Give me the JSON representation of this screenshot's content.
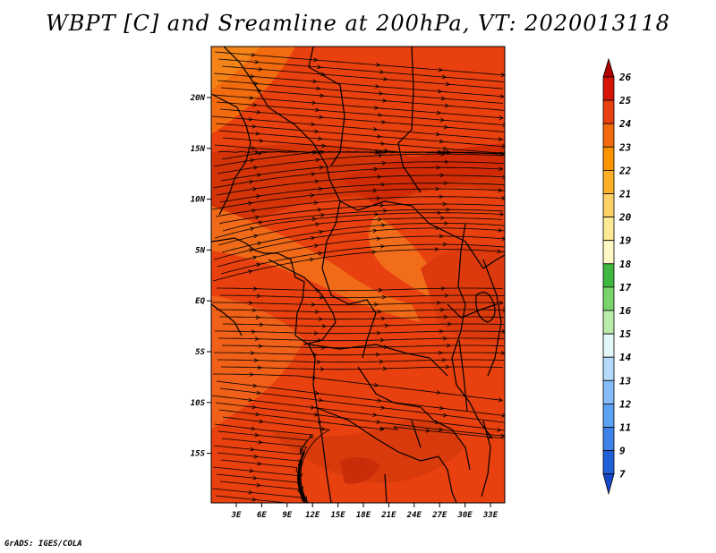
{
  "title": "WBPT [C] and Sreamline at 200hPa, VT: 2020013118",
  "footer": "GrADS: IGES/COLA",
  "map": {
    "lat_labels": [
      "20N",
      "15N",
      "10N",
      "5N",
      "EQ",
      "5S",
      "10S",
      "15S"
    ],
    "lon_labels": [
      "3E",
      "6E",
      "9E",
      "12E",
      "15E",
      "18E",
      "21E",
      "24E",
      "27E",
      "30E",
      "33E"
    ],
    "field": "wet-bulb potential temperature",
    "dominant_color": "#e8400f"
  },
  "colorbar": {
    "levels": [
      "26",
      "25",
      "24",
      "23",
      "22",
      "21",
      "20",
      "19",
      "18",
      "17",
      "16",
      "15",
      "14",
      "13",
      "12",
      "11",
      "9",
      "7"
    ],
    "colors": [
      "#b20000",
      "#d51407",
      "#e8400f",
      "#f36b0f",
      "#fa9300",
      "#fcb028",
      "#fdd168",
      "#fde996",
      "#fff7c4",
      "#3fb740",
      "#79d56b",
      "#b9ecaa",
      "#e3f6f8",
      "#b5dbfc",
      "#85bcf8",
      "#5da1f3",
      "#3d82e8",
      "#2060d8",
      "#1649c9"
    ]
  }
}
